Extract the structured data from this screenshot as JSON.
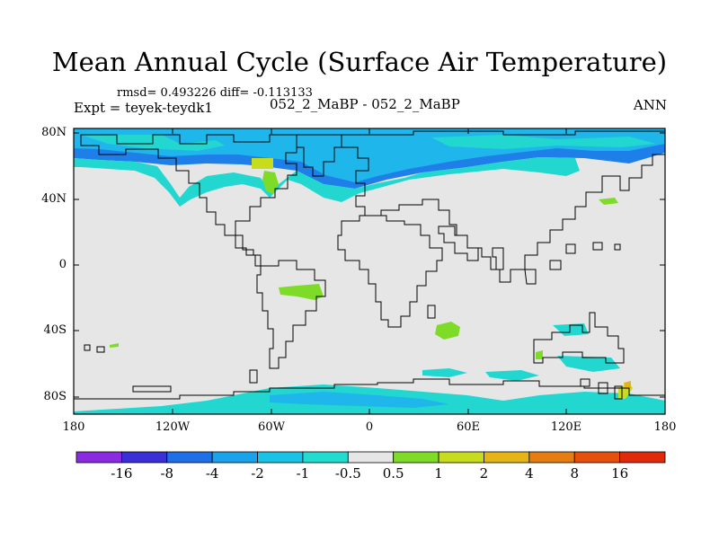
{
  "title": "Mean Annual Cycle (Surface Air Temperature)",
  "stats_line": "rmsd= 0.493226 diff= -0.113133",
  "experiment": "Expt = teyek-teydk1",
  "case_label": "052_2_MaBP - 052_2_MaBP",
  "season": "ANN",
  "lat_ticks": [
    "80N",
    "40N",
    "0",
    "40S",
    "80S"
  ],
  "lon_ticks": [
    "180",
    "120W",
    "60W",
    "0",
    "60E",
    "120E",
    "180"
  ],
  "colorbar": {
    "labels": [
      "-16",
      "-8",
      "-4",
      "-2",
      "-1",
      "-0.5",
      "0.5",
      "1",
      "2",
      "4",
      "8",
      "16"
    ],
    "colors": [
      "#8a2be2",
      "#3a2fd8",
      "#1e6fe8",
      "#1aa3ea",
      "#19c3e6",
      "#22dccf",
      "#e6e6e6",
      "#7edc28",
      "#c8dc1e",
      "#e6b414",
      "#e67d10",
      "#e6500c",
      "#e02a0a"
    ]
  },
  "field_colors": {
    "blue": "#1e7fe8",
    "lightblue": "#1fb6ec",
    "cyan": "#22d7d0",
    "land_bg": "#e6e6e6",
    "green": "#7edc28",
    "yellow": "#c8dc1e",
    "orange": "#e6b414"
  }
}
